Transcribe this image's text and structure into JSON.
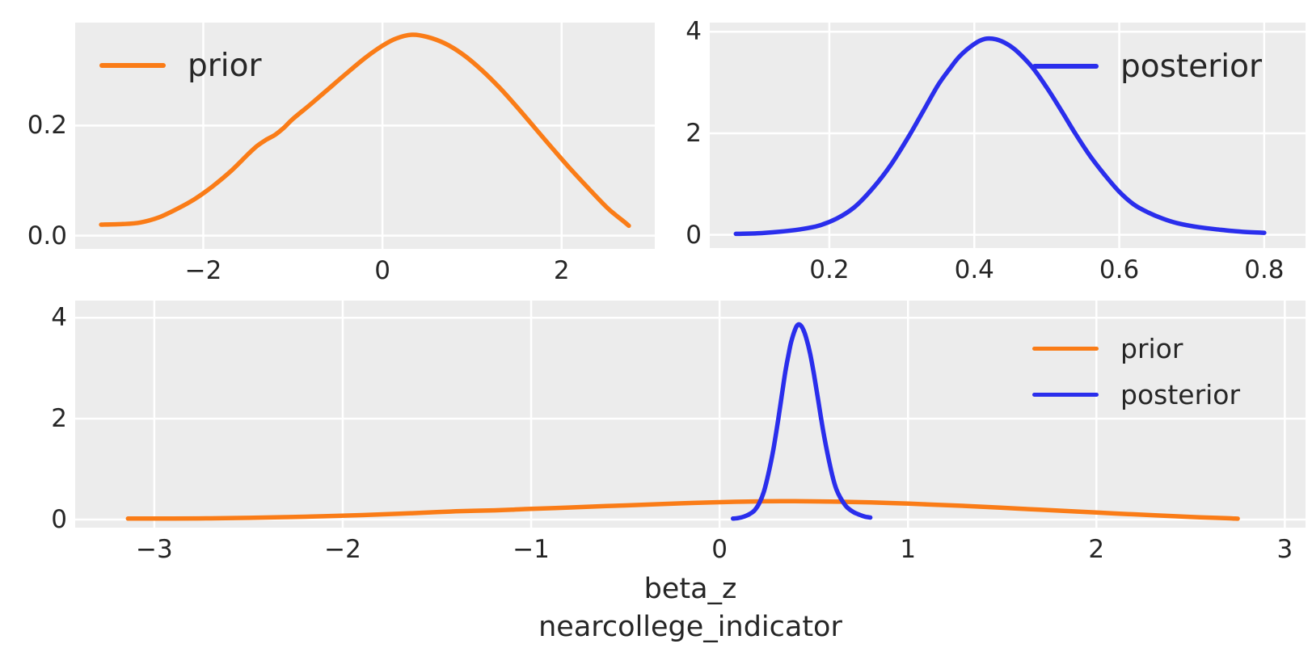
{
  "colors": {
    "prior": "#fa7c17",
    "posterior": "#2a2eec",
    "plot_bg": "#ececec",
    "grid": "#ffffff",
    "text": "#262626",
    "figure_bg": "#ffffff"
  },
  "xlabel": {
    "line1": "beta_z",
    "line2": "nearcollege_indicator"
  },
  "series_points": {
    "prior": [
      [
        -3.14,
        0.02
      ],
      [
        -2.9,
        0.021
      ],
      [
        -2.7,
        0.024
      ],
      [
        -2.5,
        0.033
      ],
      [
        -2.3,
        0.048
      ],
      [
        -2.1,
        0.066
      ],
      [
        -1.9,
        0.089
      ],
      [
        -1.7,
        0.116
      ],
      [
        -1.5,
        0.148
      ],
      [
        -1.4,
        0.163
      ],
      [
        -1.3,
        0.174
      ],
      [
        -1.2,
        0.183
      ],
      [
        -1.1,
        0.196
      ],
      [
        -1.0,
        0.212
      ],
      [
        -0.8,
        0.239
      ],
      [
        -0.6,
        0.267
      ],
      [
        -0.4,
        0.295
      ],
      [
        -0.2,
        0.322
      ],
      [
        0.0,
        0.345
      ],
      [
        0.15,
        0.358
      ],
      [
        0.33,
        0.365
      ],
      [
        0.5,
        0.361
      ],
      [
        0.7,
        0.349
      ],
      [
        0.9,
        0.329
      ],
      [
        1.1,
        0.302
      ],
      [
        1.3,
        0.27
      ],
      [
        1.5,
        0.234
      ],
      [
        1.7,
        0.196
      ],
      [
        1.9,
        0.158
      ],
      [
        2.1,
        0.121
      ],
      [
        2.3,
        0.086
      ],
      [
        2.5,
        0.052
      ],
      [
        2.6,
        0.038
      ],
      [
        2.7,
        0.025
      ],
      [
        2.75,
        0.018
      ]
    ],
    "posterior": [
      [
        0.071,
        0.02
      ],
      [
        0.1,
        0.03
      ],
      [
        0.13,
        0.06
      ],
      [
        0.16,
        0.11
      ],
      [
        0.185,
        0.18
      ],
      [
        0.21,
        0.32
      ],
      [
        0.235,
        0.55
      ],
      [
        0.26,
        0.92
      ],
      [
        0.285,
        1.38
      ],
      [
        0.31,
        1.95
      ],
      [
        0.33,
        2.45
      ],
      [
        0.35,
        2.95
      ],
      [
        0.365,
        3.25
      ],
      [
        0.38,
        3.52
      ],
      [
        0.4,
        3.76
      ],
      [
        0.415,
        3.86
      ],
      [
        0.43,
        3.85
      ],
      [
        0.445,
        3.76
      ],
      [
        0.46,
        3.6
      ],
      [
        0.48,
        3.3
      ],
      [
        0.5,
        2.9
      ],
      [
        0.52,
        2.45
      ],
      [
        0.54,
        1.98
      ],
      [
        0.56,
        1.55
      ],
      [
        0.58,
        1.18
      ],
      [
        0.6,
        0.85
      ],
      [
        0.62,
        0.6
      ],
      [
        0.64,
        0.44
      ],
      [
        0.66,
        0.32
      ],
      [
        0.68,
        0.23
      ],
      [
        0.71,
        0.15
      ],
      [
        0.74,
        0.1
      ],
      [
        0.77,
        0.06
      ],
      [
        0.8,
        0.04
      ]
    ]
  },
  "chart_data": [
    {
      "id": "top-left",
      "type": "line",
      "title": "",
      "xlabel": "",
      "ylabel": "",
      "xlim": [
        -3.43,
        3.04
      ],
      "ylim": [
        -0.024,
        0.387
      ],
      "grid": true,
      "xticks": [
        {
          "v": -2,
          "label": "−2"
        },
        {
          "v": 0,
          "label": "0"
        },
        {
          "v": 2,
          "label": "2"
        }
      ],
      "yticks": [
        {
          "v": 0.0,
          "label": "0.0"
        },
        {
          "v": 0.2,
          "label": "0.2"
        }
      ],
      "legend": {
        "position": "upper-left",
        "entries": [
          {
            "label": "prior",
            "series": "prior"
          }
        ]
      },
      "series": [
        {
          "name": "prior",
          "color": "prior",
          "points_ref": "prior"
        }
      ]
    },
    {
      "id": "top-right",
      "type": "line",
      "title": "",
      "xlabel": "",
      "ylabel": "",
      "xlim": [
        0.035,
        0.857
      ],
      "ylim": [
        -0.26,
        4.18
      ],
      "grid": true,
      "xticks": [
        {
          "v": 0.2,
          "label": "0.2"
        },
        {
          "v": 0.4,
          "label": "0.4"
        },
        {
          "v": 0.6,
          "label": "0.6"
        },
        {
          "v": 0.8,
          "label": "0.8"
        }
      ],
      "yticks": [
        {
          "v": 0,
          "label": "0"
        },
        {
          "v": 2,
          "label": "2"
        },
        {
          "v": 4,
          "label": "4"
        }
      ],
      "legend": {
        "position": "upper-right",
        "entries": [
          {
            "label": "posterior",
            "series": "posterior"
          }
        ]
      },
      "series": [
        {
          "name": "posterior",
          "color": "posterior",
          "points_ref": "posterior"
        }
      ]
    },
    {
      "id": "bottom",
      "type": "line",
      "title": "",
      "xlabel": "beta_z\nnearcollege_indicator",
      "ylabel": "",
      "xlim": [
        -3.42,
        3.11
      ],
      "ylim": [
        -0.16,
        4.34
      ],
      "grid": true,
      "xticks": [
        {
          "v": -3,
          "label": "−3"
        },
        {
          "v": -2,
          "label": "−2"
        },
        {
          "v": -1,
          "label": "−1"
        },
        {
          "v": 0,
          "label": "0"
        },
        {
          "v": 1,
          "label": "1"
        },
        {
          "v": 2,
          "label": "2"
        },
        {
          "v": 3,
          "label": "3"
        }
      ],
      "yticks": [
        {
          "v": 0,
          "label": "0"
        },
        {
          "v": 2,
          "label": "2"
        },
        {
          "v": 4,
          "label": "4"
        }
      ],
      "legend": {
        "position": "upper-right",
        "entries": [
          {
            "label": "prior",
            "series": "prior"
          },
          {
            "label": "posterior",
            "series": "posterior"
          }
        ]
      },
      "series": [
        {
          "name": "prior",
          "color": "prior",
          "points_ref": "prior"
        },
        {
          "name": "posterior",
          "color": "posterior",
          "points_ref": "posterior"
        }
      ]
    }
  ]
}
